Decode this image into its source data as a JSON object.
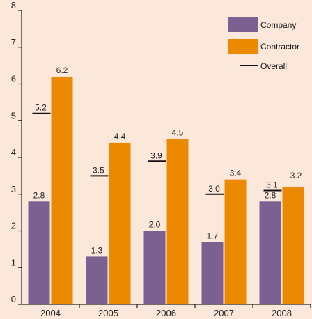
{
  "chart_data": {
    "type": "bar",
    "categories": [
      "2004",
      "2005",
      "2006",
      "2007",
      "2008"
    ],
    "series": [
      {
        "name": "Company",
        "values": [
          2.8,
          1.3,
          2.0,
          1.7,
          2.8
        ],
        "labels": [
          "2.8",
          "1.3",
          "2.0",
          "1.7",
          "2.8"
        ],
        "color": "#7a6191"
      },
      {
        "name": "Contractor",
        "values": [
          6.2,
          4.4,
          4.5,
          3.4,
          3.2
        ],
        "labels": [
          "6.2",
          "4.4",
          "4.5",
          "3.4",
          "3.2"
        ],
        "color": "#eb8a00"
      }
    ],
    "overall": {
      "name": "Overall",
      "values": [
        5.2,
        3.5,
        3.9,
        3.0,
        3.1
      ],
      "labels": [
        "5.2",
        "3.5",
        "3.9",
        "3.0",
        "3.1"
      ],
      "color": "#111111"
    },
    "yticks": [
      "0",
      "1",
      "2",
      "3",
      "4",
      "5",
      "6",
      "7",
      "8"
    ],
    "ylim": [
      0,
      8
    ],
    "grid": false,
    "legend_position": "top-right",
    "title": "",
    "xlabel": "",
    "ylabel": ""
  }
}
